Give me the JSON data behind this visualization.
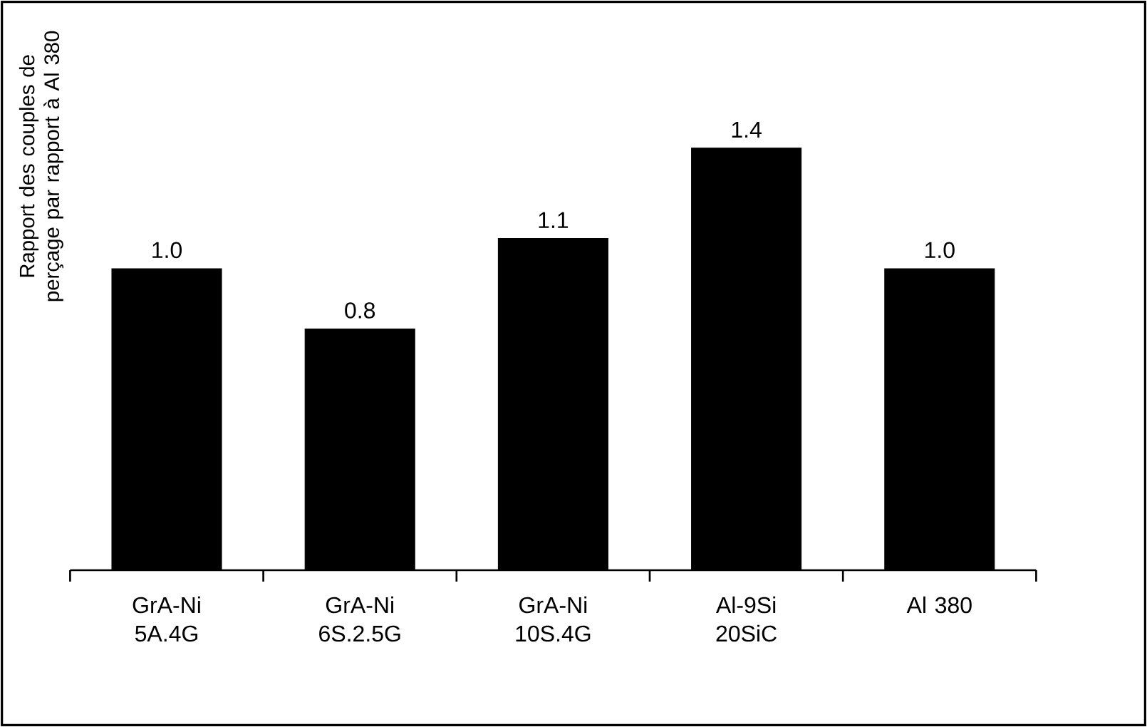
{
  "chart_data": {
    "type": "bar",
    "ylabel": "Rapport des couples de perçage par rapport à Al 380",
    "categories": [
      "GrA-Ni 5A.4G",
      "GrA-Ni 6S.2.5G",
      "GrA-Ni 10S.4G",
      "Al-9Si 20SiC",
      "Al 380"
    ],
    "values": [
      1.0,
      0.8,
      1.1,
      1.4,
      1.0
    ],
    "value_labels": [
      "1.0",
      "0.8",
      "1.1",
      "1.4",
      "1.0"
    ],
    "color": "#000000"
  }
}
